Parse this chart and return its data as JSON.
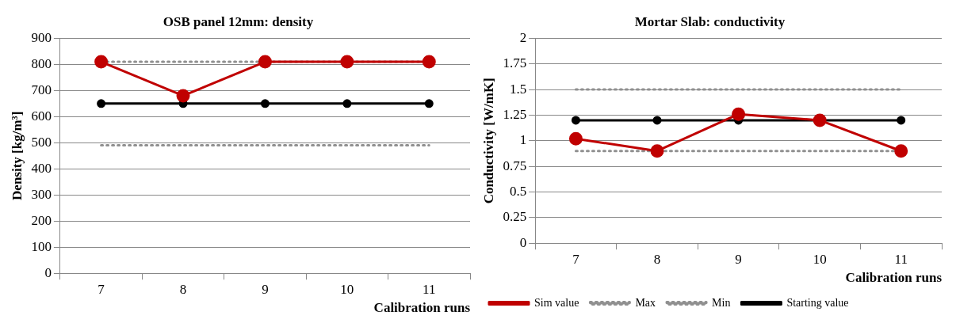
{
  "chart_data": [
    {
      "type": "line",
      "title": "OSB panel 12mm: density",
      "xlabel": "Calibration runs",
      "ylabel": "Density [kg/m³]",
      "categories": [
        "7",
        "8",
        "9",
        "10",
        "11"
      ],
      "ylim": [
        0,
        900
      ],
      "yticks": [
        0,
        100,
        200,
        300,
        400,
        500,
        600,
        700,
        800,
        900
      ],
      "grid": "y",
      "series": [
        {
          "color": "#000000",
          "values": [
            650,
            650,
            650,
            650,
            650
          ],
          "marker": "circle",
          "line_style": "solid"
        },
        {
          "color": "#909090",
          "values": [
            490,
            490,
            490,
            490,
            490
          ],
          "marker": "none",
          "line_style": "dotted"
        },
        {
          "color": "#909090",
          "values": [
            810,
            810,
            810,
            810,
            810
          ],
          "marker": "none",
          "line_style": "dotted"
        },
        {
          "color": "#c00000",
          "values": [
            810,
            680,
            810,
            810,
            810
          ],
          "marker": "circle",
          "line_style": "solid"
        }
      ]
    },
    {
      "type": "line",
      "title": "Mortar Slab: conductivity",
      "xlabel": "Calibration runs",
      "ylabel": "Conductivity [W/mK]",
      "categories": [
        "7",
        "8",
        "9",
        "10",
        "11"
      ],
      "ylim": [
        0,
        2
      ],
      "yticks": [
        0,
        0.25,
        0.5,
        0.75,
        1,
        1.25,
        1.5,
        1.75,
        2
      ],
      "grid": "y",
      "legend": "bottom",
      "series": [
        {
          "name": "Starting value",
          "color": "#000000",
          "values": [
            1.2,
            1.2,
            1.2,
            1.2,
            1.2
          ],
          "marker": "circle",
          "line_style": "solid"
        },
        {
          "name": "Min",
          "color": "#909090",
          "values": [
            0.9,
            0.9,
            0.9,
            0.9,
            0.9
          ],
          "marker": "none",
          "line_style": "dotted"
        },
        {
          "name": "Max",
          "color": "#909090",
          "values": [
            1.5,
            1.5,
            1.5,
            1.5,
            1.5
          ],
          "marker": "none",
          "line_style": "dotted"
        },
        {
          "name": "Sim value",
          "color": "#c00000",
          "values": [
            1.02,
            0.9,
            1.26,
            1.2,
            0.9
          ],
          "marker": "circle",
          "line_style": "solid"
        }
      ]
    }
  ]
}
